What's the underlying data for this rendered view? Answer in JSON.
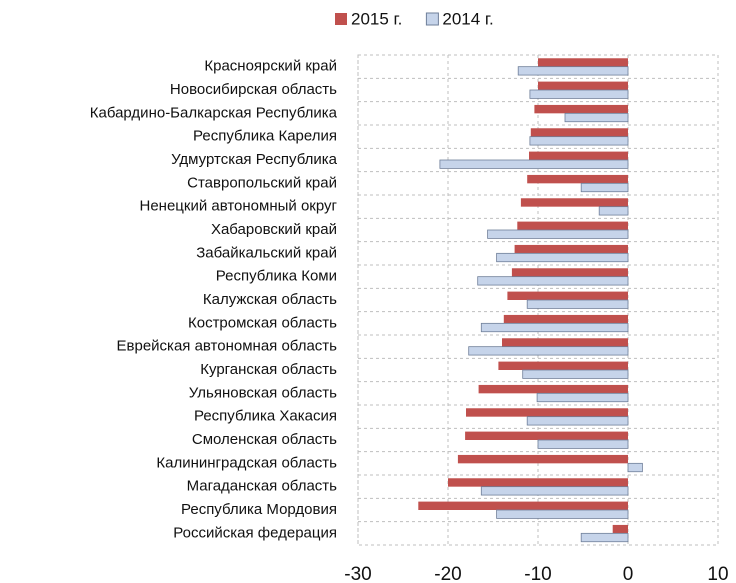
{
  "chart_data": {
    "type": "barh",
    "categories": [
      "Красноярский край",
      "Новосибирская область",
      "Кабардино-Балкарская Республика",
      "Республика Карелия",
      "Удмуртская Республика",
      "Ставропольский край",
      "Ненецкий автономный округ",
      "Хабаровский край",
      "Забайкальский край",
      "Республика Коми",
      "Калужская область",
      "Костромская область",
      "Еврейская автономная область",
      "Курганская область",
      "Ульяновская область",
      "Республика Хакасия",
      "Смоленская область",
      "Калининградская область",
      "Магаданская область",
      "Республика Мордовия",
      "Российская федерация"
    ],
    "series": [
      {
        "name": "2015 г.",
        "color": "#c0504d",
        "values": [
          -10.0,
          -10.0,
          -10.4,
          -10.8,
          -11.0,
          -11.2,
          -11.9,
          -12.3,
          -12.6,
          -12.9,
          -13.4,
          -13.8,
          -14.0,
          -14.4,
          -16.6,
          -18.0,
          -18.1,
          -18.9,
          -20.0,
          -23.3,
          -1.7
        ]
      },
      {
        "name": "2014 г.",
        "color": "#c6d4ea",
        "values": [
          -12.2,
          -10.9,
          -7.0,
          -10.9,
          -20.9,
          -5.2,
          -3.2,
          -15.6,
          -14.6,
          -16.7,
          -11.2,
          -16.3,
          -17.7,
          -11.7,
          -10.1,
          -11.2,
          -10.0,
          1.6,
          -16.3,
          -14.6,
          -5.2
        ]
      }
    ],
    "xlim": [
      -30,
      10
    ],
    "xticks": [
      -30,
      -20,
      -10,
      0,
      10
    ],
    "grid": true,
    "legend": "top"
  }
}
